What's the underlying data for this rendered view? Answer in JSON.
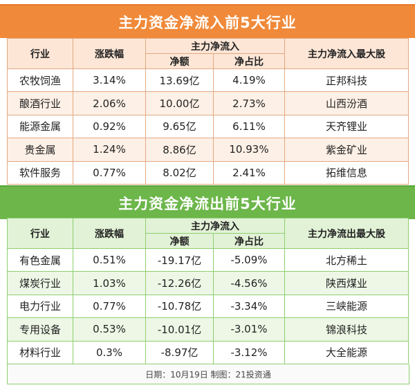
{
  "inflow": {
    "title": "主力资金净流入前5大行业",
    "headers": {
      "industry": "行业",
      "change": "涨跌幅",
      "main_net": "主力净流入",
      "net_amount": "净额",
      "net_ratio": "净占比",
      "top_stock": "主力净流入最大股"
    },
    "rows": [
      {
        "industry": "农牧饲渔",
        "change": "3.14%",
        "net_amount": "13.69亿",
        "net_ratio": "4.19%",
        "top_stock": "正邦科技"
      },
      {
        "industry": "酿酒行业",
        "change": "2.06%",
        "net_amount": "10.00亿",
        "net_ratio": "2.73%",
        "top_stock": "山西汾酒"
      },
      {
        "industry": "能源金属",
        "change": "0.92%",
        "net_amount": "9.65亿",
        "net_ratio": "6.11%",
        "top_stock": "天齐锂业"
      },
      {
        "industry": "贵金属",
        "change": "1.24%",
        "net_amount": "8.86亿",
        "net_ratio": "10.93%",
        "top_stock": "紫金矿业"
      },
      {
        "industry": "软件服务",
        "change": "0.77%",
        "net_amount": "8.02亿",
        "net_ratio": "2.41%",
        "top_stock": "拓维信息"
      }
    ]
  },
  "outflow": {
    "title": "主力资金净流出前5大行业",
    "headers": {
      "industry": "行业",
      "change": "涨跌幅",
      "main_net": "主力净流入",
      "net_amount": "净额",
      "net_ratio": "净占比",
      "top_stock": "主力净流出最大股"
    },
    "rows": [
      {
        "industry": "有色金属",
        "change": "0.51%",
        "net_amount": "-19.17亿",
        "net_ratio": "-5.09%",
        "top_stock": "北方稀土"
      },
      {
        "industry": "煤炭行业",
        "change": "1.03%",
        "net_amount": "-12.26亿",
        "net_ratio": "-4.56%",
        "top_stock": "陕西煤业"
      },
      {
        "industry": "电力行业",
        "change": "0.77%",
        "net_amount": "-10.78亿",
        "net_ratio": "-3.34%",
        "top_stock": "三峡能源"
      },
      {
        "industry": "专用设备",
        "change": "0.53%",
        "net_amount": "-10.01亿",
        "net_ratio": "-3.01%",
        "top_stock": "锦浪科技"
      },
      {
        "industry": "材料行业",
        "change": "0.3%",
        "net_amount": "-8.97亿",
        "net_ratio": "-3.12%",
        "top_stock": "大全能源"
      }
    ]
  },
  "footer": "日期：10月19日  制图：21投资通",
  "colors": {
    "inflow_accent": "#f08a3a",
    "outflow_accent": "#6cb64a"
  }
}
